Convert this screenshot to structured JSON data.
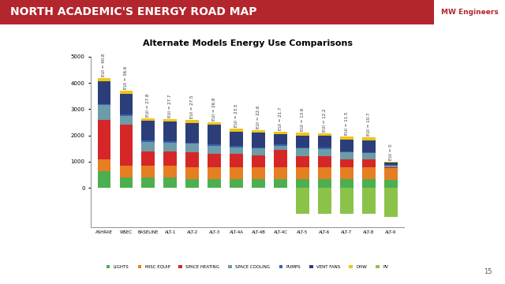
{
  "slide": {
    "header": "NORTH ACADEMIC'S ENERGY ROAD MAP",
    "logo": "MW Engineers",
    "page": 15
  },
  "chart_data": {
    "type": "bar",
    "stacked": true,
    "title": "Alternate Models Energy Use Comparisons",
    "categories": [
      "ASHRAE",
      "WSEC",
      "BASELINE",
      "ALT-1",
      "ALT-2",
      "ALT-3",
      "ALT-4A",
      "ALT-4B",
      "ALT-4C",
      "ALT-5",
      "ALT-6",
      "ALT-7",
      "ALT-8",
      "ALT-9"
    ],
    "annotations": [
      "EUI = 40.8",
      "EUI = 36.6",
      "EUI = 27.8",
      "EUI = 27.7",
      "EUI = 27.5",
      "EUI = 26.8",
      "EUI = 23.5",
      "EUI = 22.6",
      "EUI = 21.7",
      "EUI = 13.6",
      "EUI = 12.2",
      "EUI = 11.5",
      "EUI = 10.7",
      "EUI = 0"
    ],
    "series": [
      {
        "name": "LIGHTS",
        "color": "#4caf50",
        "values": [
          650,
          400,
          400,
          400,
          350,
          350,
          350,
          350,
          350,
          350,
          350,
          350,
          350,
          300
        ]
      },
      {
        "name": "MISC EQUIP",
        "color": "#e67e22",
        "values": [
          450,
          450,
          450,
          450,
          450,
          450,
          450,
          450,
          450,
          450,
          450,
          450,
          450,
          450
        ]
      },
      {
        "name": "SPACE HEATING",
        "color": "#d62728",
        "values": [
          1500,
          1550,
          550,
          550,
          550,
          500,
          500,
          450,
          650,
          400,
          400,
          300,
          300,
          50
        ]
      },
      {
        "name": "SPACE COOLING",
        "color": "#6b9ca8",
        "values": [
          550,
          350,
          350,
          320,
          330,
          300,
          250,
          250,
          150,
          300,
          280,
          250,
          220,
          50
        ]
      },
      {
        "name": "PUMPS",
        "color": "#3a64b0",
        "values": [
          50,
          50,
          50,
          50,
          50,
          50,
          50,
          50,
          50,
          50,
          50,
          50,
          50,
          25
        ]
      },
      {
        "name": "VENT FANS",
        "color": "#2c3e7a",
        "values": [
          880,
          800,
          750,
          750,
          750,
          750,
          550,
          550,
          400,
          450,
          450,
          450,
          450,
          100
        ]
      },
      {
        "name": "DHW",
        "color": "#f0c419",
        "values": [
          100,
          100,
          100,
          100,
          100,
          100,
          100,
          100,
          100,
          100,
          100,
          100,
          100,
          25
        ]
      },
      {
        "name": "PV",
        "color": "#8bc34a",
        "values": [
          0,
          0,
          0,
          0,
          0,
          0,
          0,
          0,
          0,
          -1000,
          -1000,
          -1000,
          -1000,
          -1100
        ]
      }
    ],
    "ylim": [
      -1500,
      5000
    ],
    "yticks": [
      0,
      1000,
      2000,
      3000,
      4000,
      5000
    ],
    "grid": false,
    "legend": "lower center"
  }
}
